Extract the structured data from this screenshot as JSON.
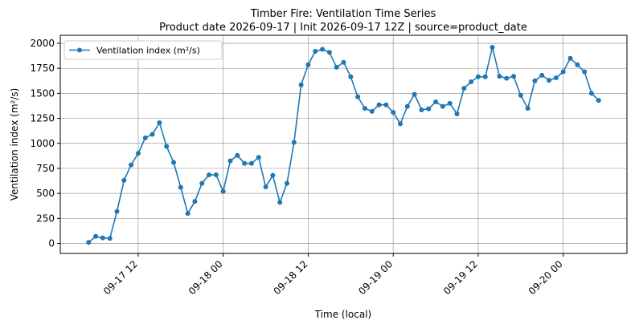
{
  "chart_data": {
    "type": "line",
    "title": "Timber Fire: Ventilation Time Series",
    "subtitle": "Product date 2026-09-17 | Init 2026-09-17 12Z | source=product_date",
    "x_label": "Time (local)",
    "y_label": "Ventilation index (m²/s)",
    "x": [
      "09-17 05",
      "09-17 06",
      "09-17 07",
      "09-17 08",
      "09-17 09",
      "09-17 10",
      "09-17 11",
      "09-17 12",
      "09-17 13",
      "09-17 14",
      "09-17 15",
      "09-17 16",
      "09-17 17",
      "09-17 18",
      "09-17 19",
      "09-17 20",
      "09-17 21",
      "09-17 22",
      "09-17 23",
      "09-18 00",
      "09-18 01",
      "09-18 02",
      "09-18 03",
      "09-18 04",
      "09-18 05",
      "09-18 06",
      "09-18 07",
      "09-18 08",
      "09-18 09",
      "09-18 10",
      "09-18 11",
      "09-18 12",
      "09-18 13",
      "09-18 14",
      "09-18 15",
      "09-18 16",
      "09-18 17",
      "09-18 18",
      "09-18 19",
      "09-18 20",
      "09-18 21",
      "09-18 22",
      "09-18 23",
      "09-19 00",
      "09-19 01",
      "09-19 02",
      "09-19 03",
      "09-19 04",
      "09-19 05",
      "09-19 06",
      "09-19 07",
      "09-19 08",
      "09-19 09",
      "09-19 10",
      "09-19 11",
      "09-19 12",
      "09-19 13",
      "09-19 14",
      "09-19 15",
      "09-19 16",
      "09-19 17",
      "09-19 18",
      "09-19 19",
      "09-19 20",
      "09-19 21",
      "09-19 22",
      "09-19 23",
      "09-20 00",
      "09-20 01",
      "09-20 02",
      "09-20 03",
      "09-20 04",
      "09-20 05"
    ],
    "series": [
      {
        "name": "Ventilation index (m²/s)",
        "color": "#1f77b4",
        "values": [
          10,
          70,
          55,
          50,
          320,
          630,
          785,
          900,
          1055,
          1090,
          1205,
          970,
          810,
          560,
          300,
          420,
          600,
          685,
          685,
          520,
          825,
          880,
          800,
          800,
          860,
          565,
          680,
          410,
          600,
          1010,
          1585,
          1785,
          1920,
          1940,
          1910,
          1760,
          1810,
          1665,
          1465,
          1350,
          1320,
          1385,
          1385,
          1310,
          1195,
          1370,
          1490,
          1335,
          1345,
          1415,
          1370,
          1400,
          1295,
          1550,
          1615,
          1665,
          1665,
          1960,
          1670,
          1650,
          1670,
          1480,
          1350,
          1625,
          1680,
          1630,
          1655,
          1715,
          1850,
          1785,
          1715,
          1500,
          1430
        ]
      }
    ],
    "xlim": [
      "09-17 01",
      "09-20 09"
    ],
    "xticks": [
      "09-17 12",
      "09-18 00",
      "09-18 12",
      "09-19 00",
      "09-19 12",
      "09-20 00"
    ],
    "ylim": [
      -100,
      2080
    ],
    "yticks": [
      0,
      250,
      500,
      750,
      1000,
      1250,
      1500,
      1750,
      2000
    ],
    "grid": true,
    "legend": "upper left"
  }
}
